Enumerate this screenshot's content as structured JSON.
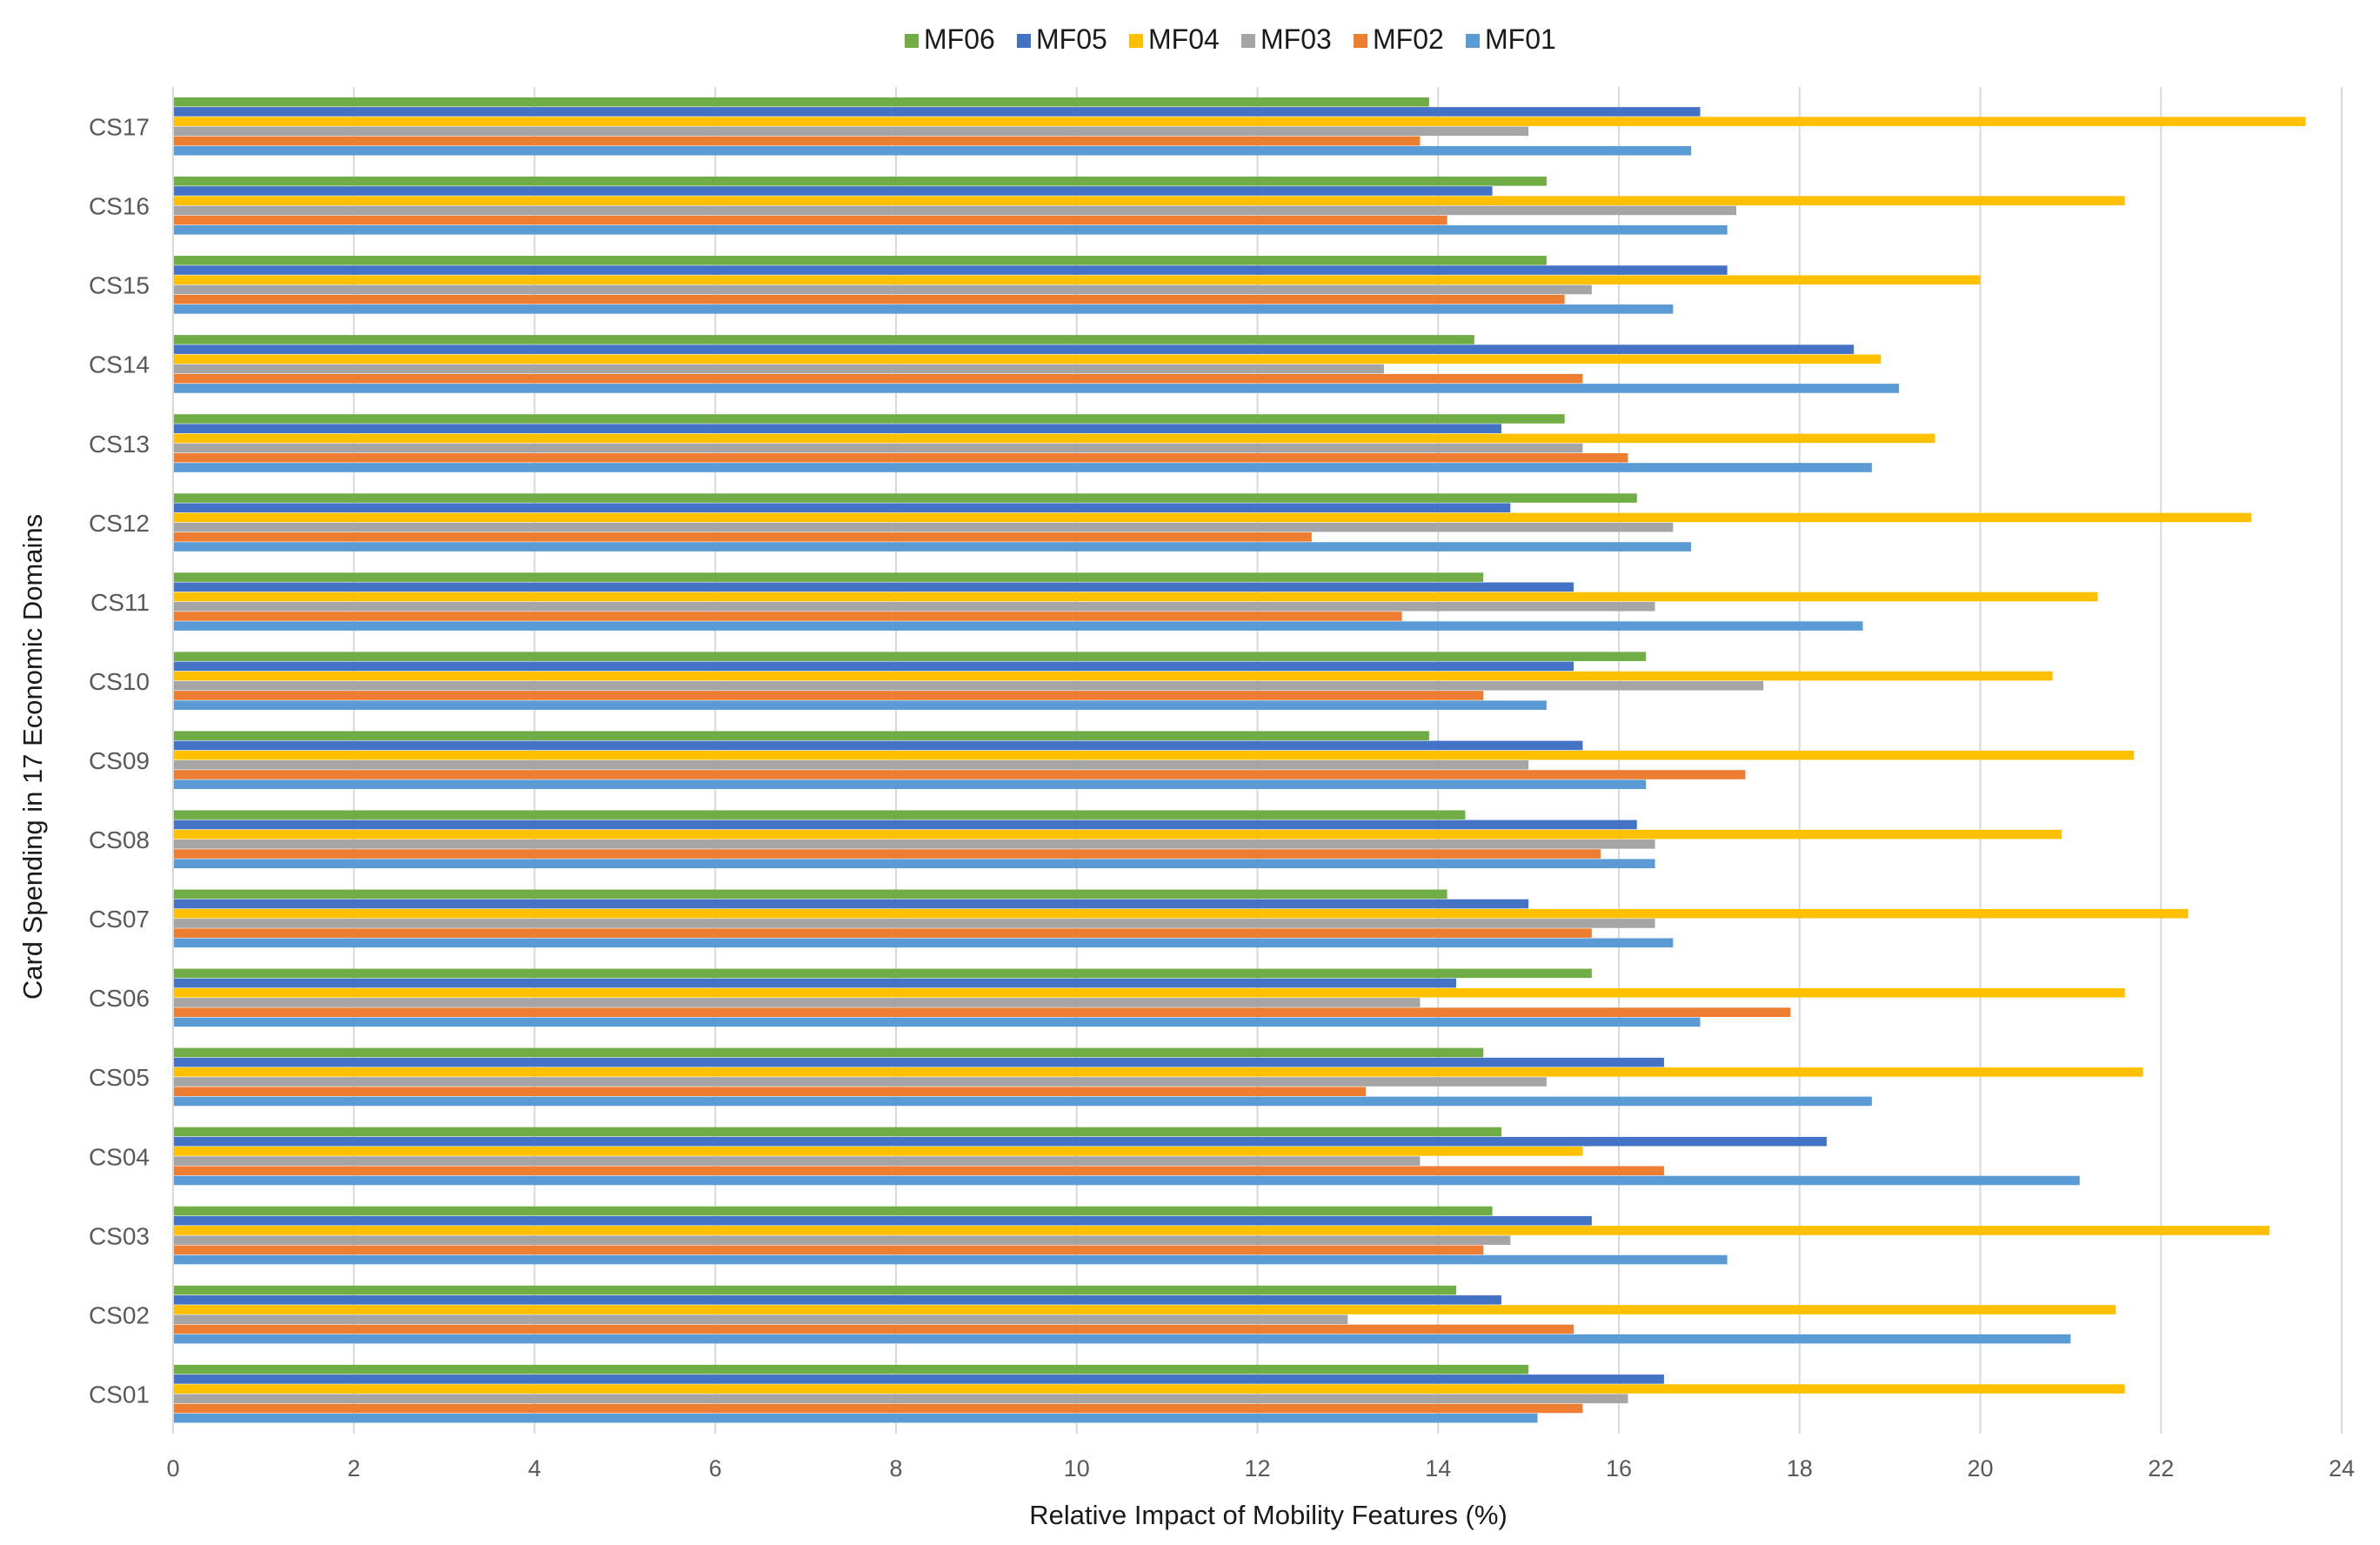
{
  "chart_data": {
    "type": "bar",
    "orientation": "horizontal",
    "xlabel": "Relative Impact of Mobility Features (%)",
    "ylabel": "Card Spending in 17 Economic Domains",
    "xlim": [
      0,
      24
    ],
    "xticks": [
      0,
      2,
      4,
      6,
      8,
      10,
      12,
      14,
      16,
      18,
      20,
      22,
      24
    ],
    "grid": true,
    "legend_position": "top",
    "categories": [
      "CS01",
      "CS02",
      "CS03",
      "CS04",
      "CS05",
      "CS06",
      "CS07",
      "CS08",
      "CS09",
      "CS10",
      "CS11",
      "CS12",
      "CS13",
      "CS14",
      "CS15",
      "CS16",
      "CS17"
    ],
    "series": [
      {
        "name": "MF01",
        "color": "#5b9bd5",
        "values": [
          15.1,
          21.0,
          17.2,
          21.1,
          18.8,
          16.9,
          16.6,
          16.4,
          16.3,
          15.2,
          18.7,
          16.8,
          18.8,
          19.1,
          16.6,
          17.2,
          16.8
        ]
      },
      {
        "name": "MF02",
        "color": "#ed7d31",
        "values": [
          15.6,
          15.5,
          14.5,
          16.5,
          13.2,
          17.9,
          15.7,
          15.8,
          17.4,
          14.5,
          13.6,
          12.6,
          16.1,
          15.6,
          15.4,
          14.1,
          13.8
        ]
      },
      {
        "name": "MF03",
        "color": "#a5a5a5",
        "values": [
          16.1,
          13.0,
          14.8,
          13.8,
          15.2,
          13.8,
          16.4,
          16.4,
          15.0,
          17.6,
          16.4,
          16.6,
          15.6,
          13.4,
          15.7,
          17.3,
          15.0
        ]
      },
      {
        "name": "MF04",
        "color": "#ffc000",
        "values": [
          21.6,
          21.5,
          23.2,
          15.6,
          21.8,
          21.6,
          22.3,
          20.9,
          21.7,
          20.8,
          21.3,
          23.0,
          19.5,
          18.9,
          20.0,
          21.6,
          23.6
        ]
      },
      {
        "name": "MF05",
        "color": "#4472c4",
        "values": [
          16.5,
          14.7,
          15.7,
          18.3,
          16.5,
          14.2,
          15.0,
          16.2,
          15.6,
          15.5,
          15.5,
          14.8,
          14.7,
          18.6,
          17.2,
          14.6,
          16.9
        ]
      },
      {
        "name": "MF06",
        "color": "#70ad47",
        "values": [
          15.0,
          14.2,
          14.6,
          14.7,
          14.5,
          15.7,
          14.1,
          14.3,
          13.9,
          16.3,
          14.5,
          16.2,
          15.4,
          14.4,
          15.2,
          15.2,
          13.9
        ]
      }
    ]
  }
}
